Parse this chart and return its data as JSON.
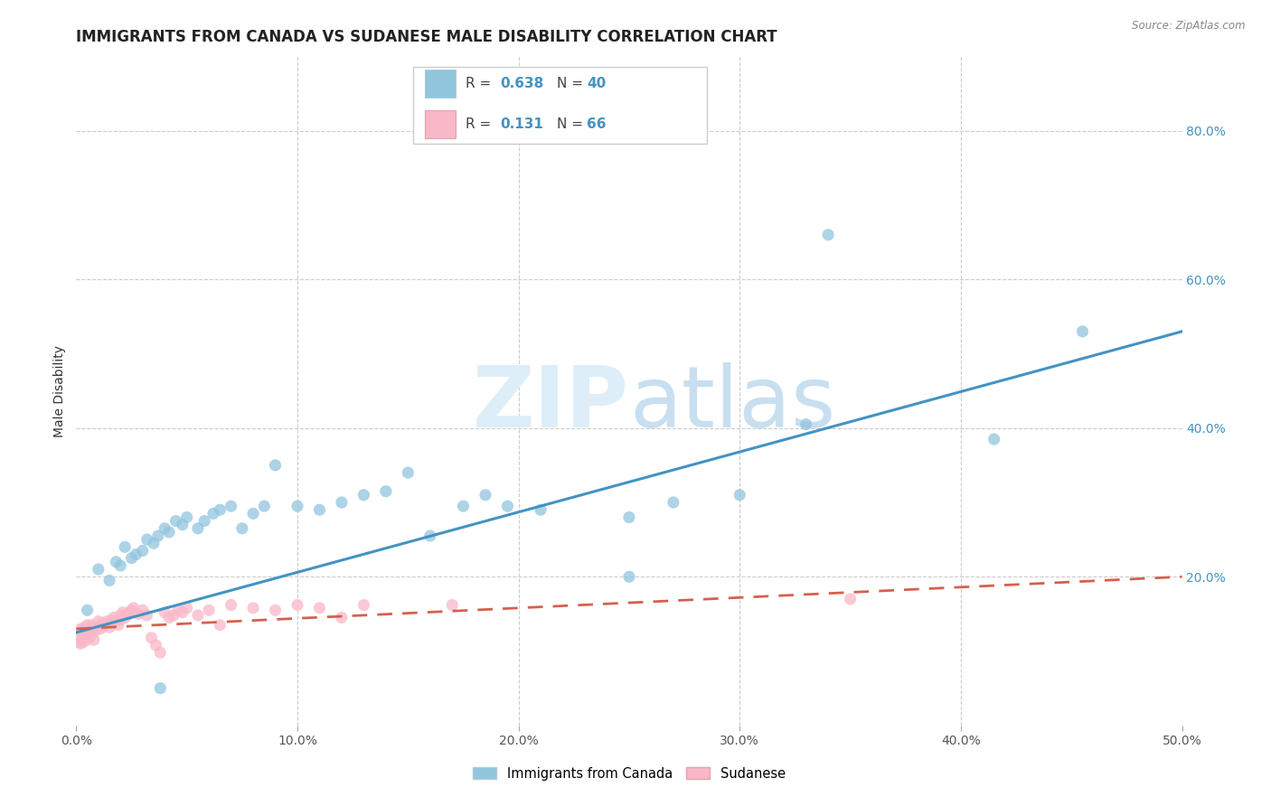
{
  "title": "IMMIGRANTS FROM CANADA VS SUDANESE MALE DISABILITY CORRELATION CHART",
  "source": "Source: ZipAtlas.com",
  "ylabel": "Male Disability",
  "xlim": [
    0.0,
    0.5
  ],
  "ylim": [
    0.0,
    0.9
  ],
  "xticks": [
    0.0,
    0.1,
    0.2,
    0.3,
    0.4,
    0.5
  ],
  "xtick_labels": [
    "0.0%",
    "10.0%",
    "20.0%",
    "30.0%",
    "40.0%",
    "50.0%"
  ],
  "yticks_right": [
    0.2,
    0.4,
    0.6,
    0.8
  ],
  "ytick_labels_right": [
    "20.0%",
    "40.0%",
    "60.0%",
    "80.0%"
  ],
  "grid_color": "#cccccc",
  "background_color": "#ffffff",
  "blue_color": "#92c5de",
  "blue_line_color": "#4393c3",
  "pink_color": "#f4a582",
  "pink_color_scatter": "#f9b8c8",
  "pink_line_color": "#d6604d",
  "blue_scatter_x": [
    0.005,
    0.01,
    0.015,
    0.018,
    0.02,
    0.022,
    0.025,
    0.027,
    0.03,
    0.032,
    0.035,
    0.037,
    0.04,
    0.042,
    0.045,
    0.048,
    0.05,
    0.055,
    0.058,
    0.062,
    0.065,
    0.07,
    0.075,
    0.08,
    0.085,
    0.09,
    0.1,
    0.11,
    0.12,
    0.13,
    0.14,
    0.15,
    0.16,
    0.175,
    0.185,
    0.195,
    0.21,
    0.25,
    0.27,
    0.3
  ],
  "blue_scatter_y": [
    0.155,
    0.21,
    0.195,
    0.22,
    0.215,
    0.24,
    0.225,
    0.23,
    0.235,
    0.25,
    0.245,
    0.255,
    0.265,
    0.26,
    0.275,
    0.27,
    0.28,
    0.265,
    0.275,
    0.285,
    0.29,
    0.295,
    0.265,
    0.285,
    0.295,
    0.35,
    0.295,
    0.29,
    0.3,
    0.31,
    0.315,
    0.34,
    0.255,
    0.295,
    0.31,
    0.295,
    0.29,
    0.28,
    0.3,
    0.31
  ],
  "blue_outlier_x": [
    0.038,
    0.33,
    0.415,
    0.455,
    0.34,
    0.25
  ],
  "blue_outlier_y": [
    0.05,
    0.405,
    0.385,
    0.53,
    0.66,
    0.2
  ],
  "pink_scatter_x": [
    0.002,
    0.003,
    0.004,
    0.005,
    0.005,
    0.006,
    0.006,
    0.007,
    0.008,
    0.008,
    0.009,
    0.01,
    0.01,
    0.011,
    0.012,
    0.013,
    0.014,
    0.015,
    0.015,
    0.016,
    0.017,
    0.018,
    0.019,
    0.02,
    0.02,
    0.021,
    0.022,
    0.023,
    0.024,
    0.025,
    0.026,
    0.028,
    0.03,
    0.032,
    0.034,
    0.036,
    0.038,
    0.04,
    0.042,
    0.044,
    0.046,
    0.048,
    0.05,
    0.055,
    0.06,
    0.065,
    0.07,
    0.08,
    0.09,
    0.1,
    0.11,
    0.12,
    0.13,
    0.001,
    0.001,
    0.002,
    0.002,
    0.003,
    0.003,
    0.004,
    0.005,
    0.006,
    0.007,
    0.008,
    0.17,
    0.35
  ],
  "pink_scatter_y": [
    0.13,
    0.128,
    0.132,
    0.125,
    0.135,
    0.13,
    0.128,
    0.135,
    0.13,
    0.132,
    0.128,
    0.135,
    0.14,
    0.13,
    0.138,
    0.135,
    0.14,
    0.132,
    0.138,
    0.142,
    0.145,
    0.14,
    0.135,
    0.142,
    0.148,
    0.152,
    0.145,
    0.148,
    0.152,
    0.155,
    0.158,
    0.15,
    0.155,
    0.148,
    0.118,
    0.108,
    0.098,
    0.152,
    0.145,
    0.148,
    0.155,
    0.152,
    0.158,
    0.148,
    0.155,
    0.135,
    0.162,
    0.158,
    0.155,
    0.162,
    0.158,
    0.145,
    0.162,
    0.118,
    0.112,
    0.115,
    0.11,
    0.118,
    0.112,
    0.12,
    0.115,
    0.118,
    0.122,
    0.115,
    0.162,
    0.17
  ],
  "blue_line_x": [
    0.0,
    0.5
  ],
  "blue_line_y": [
    0.125,
    0.53
  ],
  "pink_line_x": [
    0.0,
    0.5
  ],
  "pink_line_y": [
    0.13,
    0.2
  ],
  "watermark_zip": "ZIP",
  "watermark_atlas": "atlas",
  "title_fontsize": 12,
  "axis_fontsize": 10,
  "tick_fontsize": 10
}
